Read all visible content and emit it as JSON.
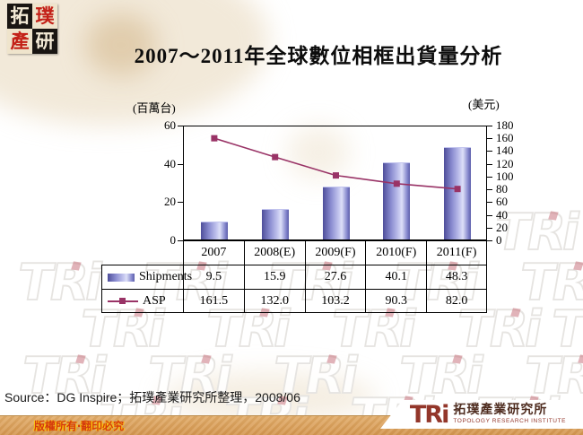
{
  "page": {
    "title": "2007～2011年全球數位相框出貨量分析"
  },
  "corner_logo": {
    "chars": [
      "拓",
      "璞",
      "產",
      "研"
    ]
  },
  "chart_data": {
    "type": "bar+line combo",
    "title": "2007～2011年全球數位相框出貨量分析",
    "categories": [
      "2007",
      "2008(E)",
      "2009(F)",
      "2010(F)",
      "2011(F)"
    ],
    "series": [
      {
        "name": "Shipments",
        "type": "bar",
        "axis": "left",
        "values": [
          9.5,
          15.9,
          27.6,
          40.1,
          48.3
        ]
      },
      {
        "name": "ASP",
        "type": "line",
        "axis": "right",
        "values": [
          161.5,
          132.0,
          103.2,
          90.3,
          82.0
        ]
      }
    ],
    "left_axis": {
      "label": "(百萬台)",
      "min": 0,
      "max": 60,
      "tick_labels": [
        "0",
        "20",
        "40",
        "60"
      ]
    },
    "right_axis": {
      "label": "(美元)",
      "min": 0,
      "max": 180,
      "tick_labels": [
        "0",
        "20",
        "40",
        "60",
        "80",
        "100",
        "120",
        "140",
        "160",
        "180"
      ]
    },
    "grid": false,
    "legend_position": "table-left",
    "colors": {
      "bar_main": "#8a8cd0",
      "line": "#993366"
    }
  },
  "table": {
    "rows": [
      {
        "label": "Shipments",
        "values": [
          "9.5",
          "15.9",
          "27.6",
          "40.1",
          "48.3"
        ]
      },
      {
        "label": "ASP",
        "values": [
          "161.5",
          "132.0",
          "103.2",
          "90.3",
          "82.0"
        ]
      }
    ]
  },
  "source_note": "Source：DG Inspire；拓璞產業研究所整理，2008/06",
  "footer": {
    "copyright": "版權所有‧翻印必究",
    "logo_text": "TRi",
    "org_cn": "拓璞產業研究所",
    "org_en": "TOPOLOGY RESEARCH INSTITUTE"
  },
  "watermark_text": "TRi"
}
